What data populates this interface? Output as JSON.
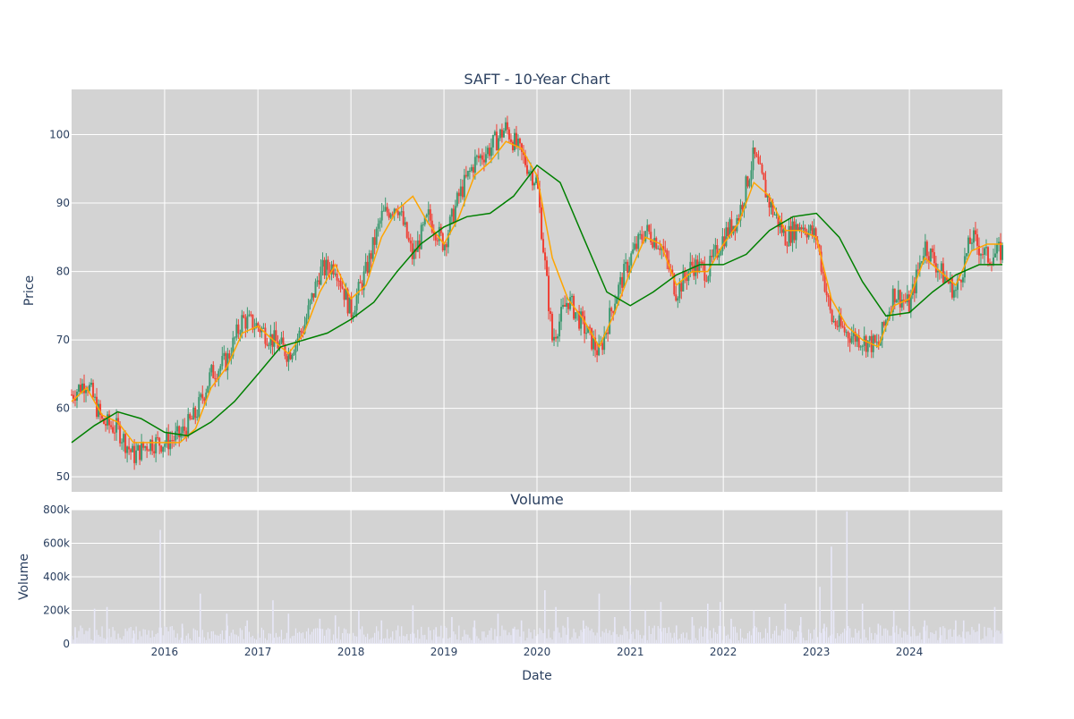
{
  "chart_data": [
    {
      "type": "candlestick",
      "title": "SAFT - 10-Year Chart",
      "xlabel": "",
      "ylabel": "Price",
      "ylim": [
        47.8,
        106.6
      ],
      "yticks": [
        50,
        60,
        70,
        80,
        90,
        100
      ],
      "xrange": [
        "2015-01-01",
        "2024-12-31"
      ],
      "xticks": [
        "2016",
        "2017",
        "2018",
        "2019",
        "2020",
        "2021",
        "2022",
        "2023",
        "2024"
      ],
      "grid": true,
      "colors": {
        "background": "#d3d3d3",
        "up": "#3d9970",
        "down": "#ef4136",
        "ma_short": "#ffa500",
        "ma_long": "#008000"
      },
      "series": [
        {
          "role": "close",
          "x": [
            "2015-01-01",
            "2015-03-01",
            "2015-05-01",
            "2015-07-01",
            "2015-09-01",
            "2015-11-01",
            "2016-01-01",
            "2016-03-01",
            "2016-05-01",
            "2016-07-01",
            "2016-09-01",
            "2016-11-01",
            "2017-01-01",
            "2017-03-01",
            "2017-05-01",
            "2017-07-01",
            "2017-09-01",
            "2017-11-01",
            "2018-01-01",
            "2018-03-01",
            "2018-05-01",
            "2018-07-01",
            "2018-09-01",
            "2018-11-01",
            "2019-01-01",
            "2019-03-01",
            "2019-05-01",
            "2019-07-01",
            "2019-09-01",
            "2019-11-01",
            "2020-01-01",
            "2020-03-01",
            "2020-05-01",
            "2020-07-01",
            "2020-09-01",
            "2020-11-01",
            "2021-01-01",
            "2021-03-01",
            "2021-05-01",
            "2021-07-01",
            "2021-09-01",
            "2021-11-01",
            "2022-01-01",
            "2022-03-01",
            "2022-05-01",
            "2022-07-01",
            "2022-09-01",
            "2022-11-01",
            "2023-01-01",
            "2023-03-01",
            "2023-05-01",
            "2023-07-01",
            "2023-09-01",
            "2023-11-01",
            "2024-01-01",
            "2024-03-01",
            "2024-05-01",
            "2024-07-01",
            "2024-09-01",
            "2024-11-01",
            "2024-12-31"
          ],
          "values": [
            62,
            64,
            58,
            57,
            53,
            55,
            55,
            56,
            59,
            65,
            67,
            73,
            72,
            70,
            68,
            72,
            80,
            81,
            74,
            80,
            88,
            90,
            82,
            88,
            84,
            91,
            96,
            98,
            101,
            97,
            93,
            70,
            76,
            72,
            68,
            76,
            82,
            86,
            84,
            77,
            81,
            80,
            85,
            88,
            97,
            90,
            85,
            87,
            85,
            73,
            71,
            70,
            69,
            77,
            75,
            84,
            80,
            77,
            85,
            82,
            83
          ]
        },
        {
          "role": "ma_short",
          "x": [
            "2015-01-01",
            "2015-03-01",
            "2015-05-01",
            "2015-07-01",
            "2015-09-01",
            "2015-11-01",
            "2016-01-01",
            "2016-03-01",
            "2016-05-01",
            "2016-07-01",
            "2016-09-01",
            "2016-11-01",
            "2017-01-01",
            "2017-03-01",
            "2017-05-01",
            "2017-07-01",
            "2017-09-01",
            "2017-11-01",
            "2018-01-01",
            "2018-03-01",
            "2018-05-01",
            "2018-07-01",
            "2018-09-01",
            "2018-11-01",
            "2019-01-01",
            "2019-03-01",
            "2019-05-01",
            "2019-07-01",
            "2019-09-01",
            "2019-11-01",
            "2020-01-01",
            "2020-03-01",
            "2020-05-01",
            "2020-07-01",
            "2020-09-01",
            "2020-11-01",
            "2021-01-01",
            "2021-03-01",
            "2021-05-01",
            "2021-07-01",
            "2021-09-01",
            "2021-11-01",
            "2022-01-01",
            "2022-03-01",
            "2022-05-01",
            "2022-07-01",
            "2022-09-01",
            "2022-11-01",
            "2023-01-01",
            "2023-03-01",
            "2023-05-01",
            "2023-07-01",
            "2023-09-01",
            "2023-11-01",
            "2024-01-01",
            "2024-03-01",
            "2024-05-01",
            "2024-07-01",
            "2024-09-01",
            "2024-11-01",
            "2024-12-31"
          ],
          "values": [
            61,
            63,
            59,
            58,
            55,
            55,
            55,
            55,
            57,
            63,
            66,
            71,
            72,
            70,
            68,
            71,
            77,
            81,
            76,
            78,
            85,
            89,
            91,
            87,
            84,
            88,
            94,
            96,
            99,
            98,
            94,
            82,
            76,
            73,
            69,
            74,
            80,
            85,
            84,
            78,
            80,
            80,
            84,
            87,
            93,
            91,
            86,
            86,
            85,
            76,
            72,
            70,
            69,
            75,
            76,
            82,
            80,
            78,
            83,
            84,
            84
          ]
        },
        {
          "role": "ma_long",
          "x": [
            "2015-01-01",
            "2015-04-01",
            "2015-07-01",
            "2015-10-01",
            "2016-01-01",
            "2016-04-01",
            "2016-07-01",
            "2016-10-01",
            "2017-01-01",
            "2017-04-01",
            "2017-07-01",
            "2017-10-01",
            "2018-01-01",
            "2018-04-01",
            "2018-07-01",
            "2018-10-01",
            "2019-01-01",
            "2019-04-01",
            "2019-07-01",
            "2019-10-01",
            "2020-01-01",
            "2020-04-01",
            "2020-07-01",
            "2020-10-01",
            "2021-01-01",
            "2021-04-01",
            "2021-07-01",
            "2021-10-01",
            "2022-01-01",
            "2022-04-01",
            "2022-07-01",
            "2022-10-01",
            "2023-01-01",
            "2023-04-01",
            "2023-07-01",
            "2023-10-01",
            "2024-01-01",
            "2024-04-01",
            "2024-07-01",
            "2024-10-01",
            "2024-12-31"
          ],
          "values": [
            55,
            57.5,
            59.5,
            58.5,
            56.5,
            56,
            58,
            61,
            65,
            69,
            70,
            71,
            73,
            75.5,
            80,
            84,
            86.5,
            88,
            88.5,
            91,
            95.5,
            93,
            85,
            77,
            75,
            77,
            79.5,
            81,
            81,
            82.5,
            86,
            88,
            88.5,
            85,
            78.5,
            73.5,
            74,
            77,
            79.5,
            81,
            81
          ]
        }
      ]
    },
    {
      "type": "bar",
      "title": "Volume",
      "xlabel": "Date",
      "ylabel": "Volume",
      "ylim": [
        0,
        800000
      ],
      "yticks": [
        0,
        200000,
        400000,
        600000,
        800000
      ],
      "ytick_labels": [
        "0",
        "200k",
        "400k",
        "600k",
        "800k"
      ],
      "xticks": [
        "2016",
        "2017",
        "2018",
        "2019",
        "2020",
        "2021",
        "2022",
        "2023",
        "2024"
      ],
      "grid": true,
      "colors": {
        "background": "#d3d3d3",
        "bar": "#e8e8f8"
      },
      "series": [
        {
          "name": "",
          "x": [
            "2015-01-15",
            "2015-04-01",
            "2015-05-20",
            "2015-09-01",
            "2015-12-15",
            "2016-03-10",
            "2016-05-20",
            "2016-09-01",
            "2016-11-20",
            "2017-03-01",
            "2017-05-01",
            "2017-09-01",
            "2017-11-01",
            "2018-02-01",
            "2018-05-01",
            "2018-09-01",
            "2018-12-01",
            "2019-02-01",
            "2019-05-01",
            "2019-08-01",
            "2019-10-01",
            "2019-11-01",
            "2020-02-01",
            "2020-03-15",
            "2020-05-01",
            "2020-07-01",
            "2020-09-01",
            "2020-11-01",
            "2021-01-01",
            "2021-03-01",
            "2021-05-01",
            "2021-07-01",
            "2021-09-01",
            "2021-11-01",
            "2021-12-20",
            "2022-02-01",
            "2022-05-01",
            "2022-07-01",
            "2022-09-01",
            "2022-11-01",
            "2023-01-15",
            "2023-02-01",
            "2023-03-01",
            "2023-03-10",
            "2023-05-01",
            "2023-07-01",
            "2023-09-01",
            "2023-11-01",
            "2024-01-01",
            "2024-03-01",
            "2024-05-01",
            "2024-07-01",
            "2024-08-01",
            "2024-10-01",
            "2024-12-01"
          ],
          "values": [
            100000,
            210000,
            220000,
            80000,
            680000,
            120000,
            300000,
            180000,
            140000,
            260000,
            180000,
            150000,
            170000,
            200000,
            140000,
            230000,
            100000,
            160000,
            140000,
            180000,
            90000,
            140000,
            320000,
            220000,
            160000,
            140000,
            300000,
            160000,
            350000,
            200000,
            250000,
            110000,
            160000,
            240000,
            250000,
            150000,
            200000,
            160000,
            240000,
            160000,
            340000,
            120000,
            580000,
            200000,
            790000,
            240000,
            120000,
            200000,
            320000,
            140000,
            100000,
            140000,
            140000,
            120000,
            220000
          ]
        }
      ]
    }
  ]
}
